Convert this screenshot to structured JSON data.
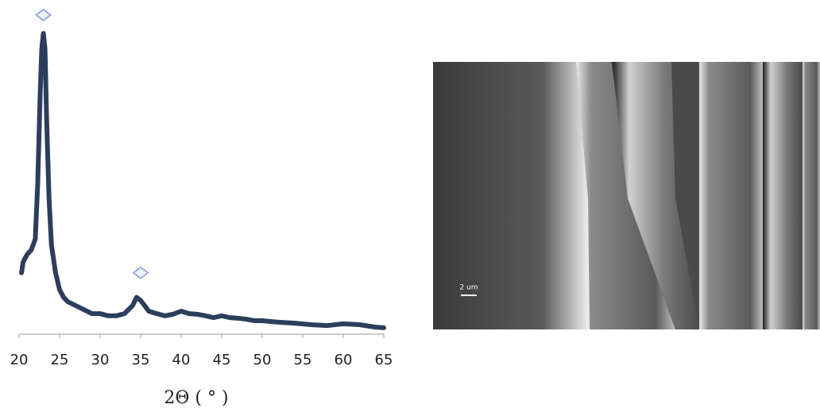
{
  "chart_data": {
    "type": "line",
    "x": [
      20.3,
      20.5,
      21,
      21.5,
      22,
      22.3,
      22.6,
      22.8,
      23,
      23.2,
      23.4,
      23.7,
      24,
      24.5,
      25,
      25.5,
      26,
      27,
      28,
      29,
      30,
      31,
      32,
      33,
      34,
      34.5,
      35,
      35.5,
      36,
      37,
      38,
      39,
      40,
      41,
      42,
      43,
      44,
      45,
      46,
      47,
      48,
      49,
      50,
      52,
      54,
      56,
      58,
      60,
      62,
      64,
      65
    ],
    "values": [
      20,
      23.5,
      26,
      27.4,
      31,
      49,
      78,
      93,
      98,
      93,
      70,
      44,
      29,
      20,
      14.5,
      12,
      10.6,
      9.3,
      8,
      6.7,
      6.7,
      6,
      6,
      6.7,
      9.3,
      12,
      11,
      9.3,
      7.5,
      6.7,
      6,
      6.5,
      7.5,
      6.7,
      6.5,
      6,
      5.4,
      6,
      5.4,
      5.2,
      4.9,
      4.4,
      4.4,
      3.9,
      3.6,
      3.1,
      2.8,
      3.4,
      3.1,
      2.3,
      2.1
    ],
    "color": "#2c3e5c",
    "xlim": [
      20,
      65
    ],
    "xticks": [
      20,
      25,
      30,
      35,
      40,
      45,
      50,
      55,
      60,
      65
    ],
    "ylim": [
      0,
      105
    ],
    "xlabel": "2Θ ( ° )",
    "annotations": [
      {
        "x": 23,
        "y": 104
      },
      {
        "x": 35,
        "y": 20
      }
    ],
    "annotation_color": "#7a9cd8"
  },
  "image": {
    "scale_label": "2 um"
  }
}
